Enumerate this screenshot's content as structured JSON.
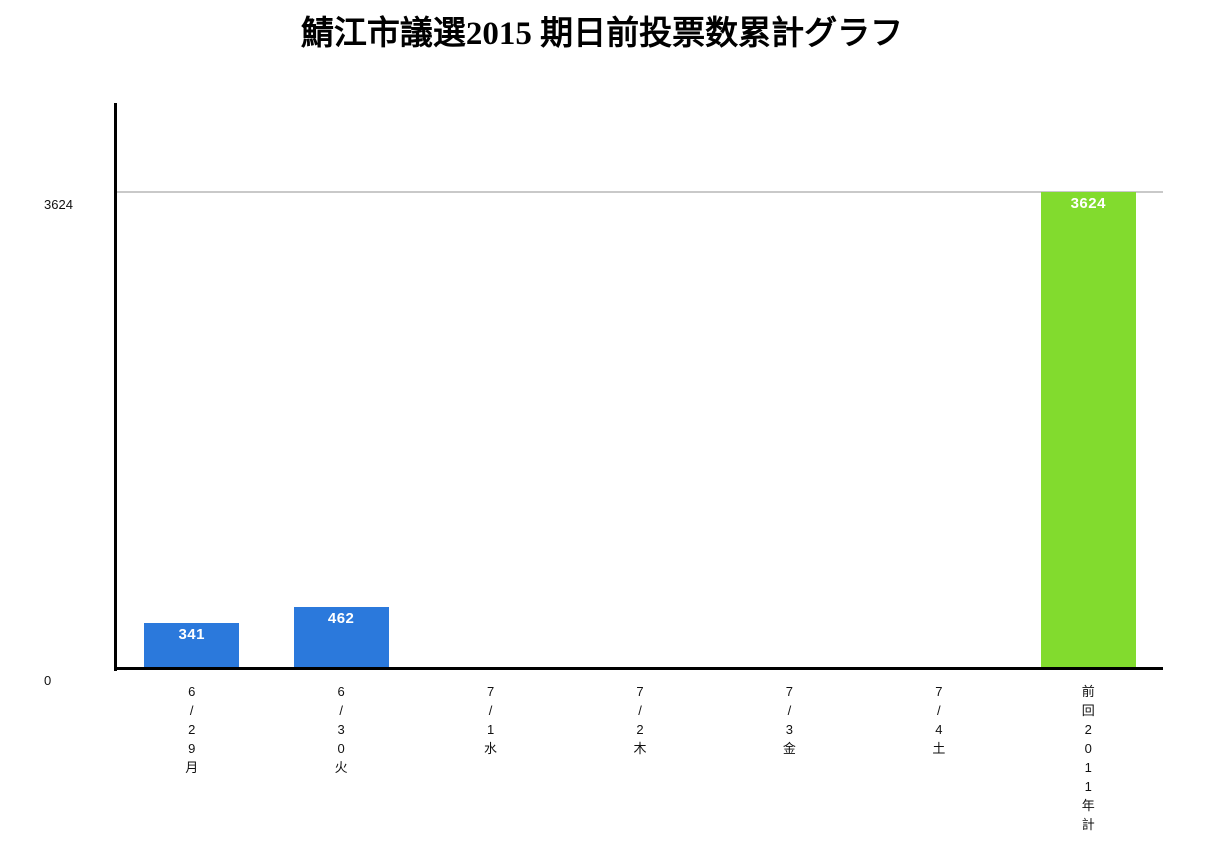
{
  "title": "鯖江市議選2015 期日前投票数累計グラフ",
  "chart_data": {
    "type": "bar",
    "title": "鯖江市議選2015 期日前投票数累計グラフ",
    "xlabel": "",
    "ylabel": "",
    "categories": [
      "6/29月",
      "6/30火",
      "7/1水",
      "7/2木",
      "7/3金",
      "7/4土",
      "前回2011年計"
    ],
    "values": [
      341,
      462,
      0,
      0,
      0,
      0,
      3624
    ],
    "bar_colors": [
      "#2b79dc",
      "#2b79dc",
      "#2b79dc",
      "#2b79dc",
      "#2b79dc",
      "#2b79dc",
      "#82db2e"
    ],
    "value_label_color": "#ffffff",
    "ylim": [
      0,
      3624
    ],
    "yticks": [
      0,
      3624
    ],
    "gridlines": [
      3624
    ],
    "grid_color": "#c9c9c9",
    "axis_color": "#000000",
    "tick_label_color": "#111111",
    "legend": "none",
    "grid": "horizontal-at-3624-only",
    "category_label_orientation": "vertical-upright"
  }
}
